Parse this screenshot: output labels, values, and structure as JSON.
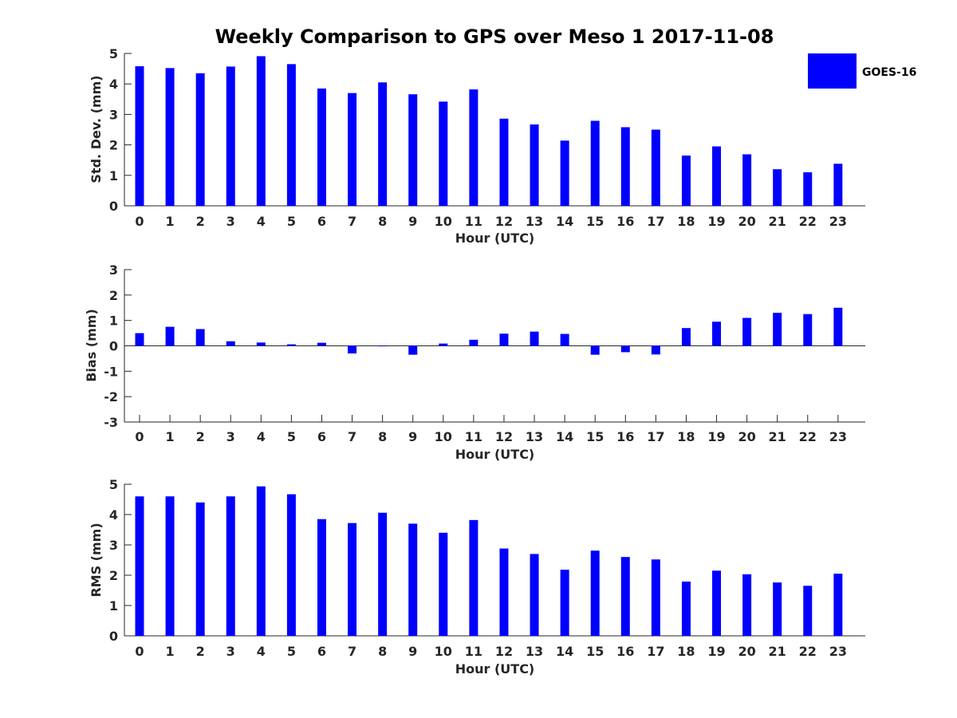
{
  "figure": {
    "title": "Weekly Comparison to GPS over Meso 1 2017-11-08"
  },
  "legend": {
    "label": "GOES-16",
    "placement": "top-right",
    "color": "#0000ff"
  },
  "chart_data": [
    {
      "type": "bar",
      "title": "Weekly Comparison to GPS over Meso 1 2017-11-08",
      "xlabel": "Hour (UTC)",
      "ylabel": "Std. Dev. (mm)",
      "categories": [
        "0",
        "1",
        "2",
        "3",
        "4",
        "5",
        "6",
        "7",
        "8",
        "9",
        "10",
        "11",
        "12",
        "13",
        "14",
        "15",
        "16",
        "17",
        "18",
        "19",
        "20",
        "21",
        "22",
        "23"
      ],
      "series": [
        {
          "name": "GOES-16",
          "color": "#0000ff",
          "values": [
            4.58,
            4.52,
            4.35,
            4.57,
            4.91,
            4.65,
            3.85,
            3.7,
            4.05,
            3.66,
            3.42,
            3.82,
            2.86,
            2.67,
            2.14,
            2.79,
            2.58,
            2.5,
            1.65,
            1.95,
            1.69,
            1.2,
            1.1,
            1.38
          ]
        }
      ],
      "ylim": [
        0,
        5
      ],
      "yticks": [
        0,
        1,
        2,
        3,
        4,
        5
      ],
      "grid": false
    },
    {
      "type": "bar",
      "xlabel": "Hour (UTC)",
      "ylabel": "Bias (mm)",
      "categories": [
        "0",
        "1",
        "2",
        "3",
        "4",
        "5",
        "6",
        "7",
        "8",
        "9",
        "10",
        "11",
        "12",
        "13",
        "14",
        "15",
        "16",
        "17",
        "18",
        "19",
        "20",
        "21",
        "22",
        "23"
      ],
      "series": [
        {
          "name": "GOES-16",
          "color": "#0000ff",
          "values": [
            0.5,
            0.75,
            0.66,
            0.18,
            0.13,
            0.06,
            0.12,
            -0.3,
            -0.02,
            -0.35,
            0.09,
            0.24,
            0.48,
            0.56,
            0.47,
            -0.35,
            -0.25,
            -0.34,
            0.7,
            0.95,
            1.1,
            1.3,
            1.25,
            1.5
          ]
        }
      ],
      "ylim": [
        -3,
        3
      ],
      "yticks": [
        -3,
        -2,
        -1,
        0,
        1,
        2,
        3
      ],
      "zero_line": true,
      "grid": false
    },
    {
      "type": "bar",
      "xlabel": "Hour (UTC)",
      "ylabel": "RMS (mm)",
      "categories": [
        "0",
        "1",
        "2",
        "3",
        "4",
        "5",
        "6",
        "7",
        "8",
        "9",
        "10",
        "11",
        "12",
        "13",
        "14",
        "15",
        "16",
        "17",
        "18",
        "19",
        "20",
        "21",
        "22",
        "23"
      ],
      "series": [
        {
          "name": "GOES-16",
          "color": "#0000ff",
          "values": [
            4.6,
            4.6,
            4.4,
            4.6,
            4.93,
            4.67,
            3.85,
            3.72,
            4.06,
            3.7,
            3.4,
            3.82,
            2.88,
            2.7,
            2.18,
            2.81,
            2.6,
            2.52,
            1.79,
            2.15,
            2.03,
            1.76,
            1.65,
            2.05
          ]
        }
      ],
      "ylim": [
        0,
        5
      ],
      "yticks": [
        0,
        1,
        2,
        3,
        4,
        5
      ],
      "grid": false
    }
  ]
}
